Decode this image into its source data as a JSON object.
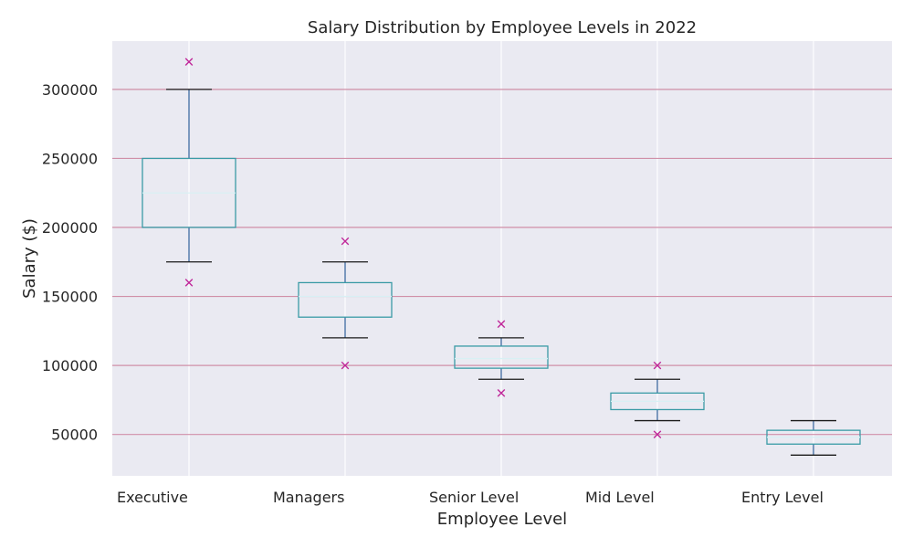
{
  "chart_data": {
    "type": "box",
    "title": "Salary Distribution by Employee Levels in 2022",
    "xlabel": "Employee Level",
    "ylabel": "Salary ($)",
    "ylim": [
      20000,
      335000
    ],
    "yticks": [
      50000,
      100000,
      150000,
      200000,
      250000,
      300000
    ],
    "grid": true,
    "categories": [
      "Executive",
      "Managers",
      "Senior Level",
      "Mid Level",
      "Entry Level"
    ],
    "boxes": [
      {
        "whisker_low": 175000,
        "q1": 200000,
        "median": 225000,
        "q3": 250000,
        "whisker_high": 300000,
        "outliers": [
          160000,
          320000
        ]
      },
      {
        "whisker_low": 120000,
        "q1": 135000,
        "median": 150000,
        "q3": 160000,
        "whisker_high": 175000,
        "outliers": [
          100000,
          190000
        ]
      },
      {
        "whisker_low": 90000,
        "q1": 98000,
        "median": 105000,
        "q3": 114000,
        "whisker_high": 120000,
        "outliers": [
          80000,
          130000
        ]
      },
      {
        "whisker_low": 60000,
        "q1": 68000,
        "median": 74000,
        "q3": 80000,
        "whisker_high": 90000,
        "outliers": [
          50000,
          100000
        ]
      },
      {
        "whisker_low": 35000,
        "q1": 43000,
        "median": 48000,
        "q3": 53000,
        "whisker_high": 60000,
        "outliers": []
      }
    ],
    "colors": {
      "background": "#eaeaf2",
      "horizontal_grid": "#d08fa8",
      "vertical_grid": "#ffffff",
      "box": "#3a9ba6",
      "median": "#d8f0f4",
      "whisker": "#2f5f9a",
      "cap": "#1a1a1a",
      "outlier": "#c0289a"
    }
  }
}
